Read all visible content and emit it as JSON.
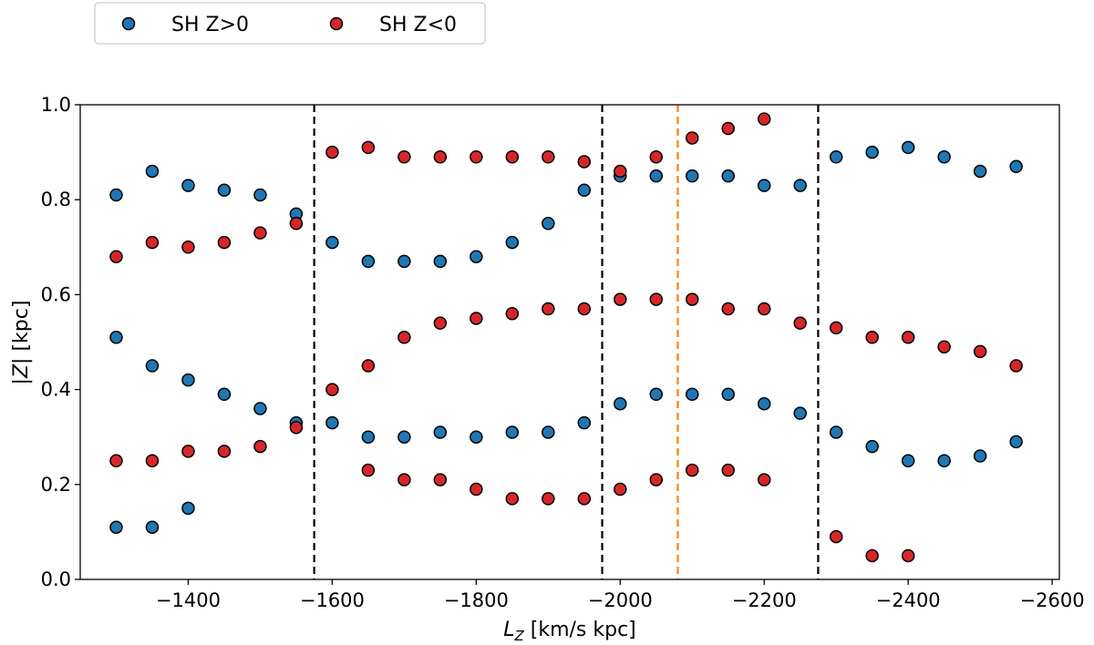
{
  "chart_data": {
    "type": "scatter",
    "title": "",
    "xlabel_main": "L",
    "xlabel_sub": "Z",
    "xlabel_rest": " [km/s kpc]",
    "ylabel_pre": "|",
    "ylabel_var": "Z",
    "ylabel_post": "| [kpc]",
    "xlim": [
      -1250,
      -2610
    ],
    "ylim": [
      0.0,
      1.0
    ],
    "xticks": [
      -1400,
      -1600,
      -1800,
      -2000,
      -2200,
      -2400,
      -2600
    ],
    "xtick_labels": [
      "−1400",
      "−1600",
      "−1800",
      "−2000",
      "−2200",
      "−2400",
      "−2600"
    ],
    "yticks": [
      0.0,
      0.2,
      0.4,
      0.6,
      0.8,
      1.0
    ],
    "ytick_labels": [
      "0.0",
      "0.2",
      "0.4",
      "0.6",
      "0.8",
      "1.0"
    ],
    "vlines": [
      {
        "x": -1575,
        "color": "#000000",
        "style": "dashed"
      },
      {
        "x": -1975,
        "color": "#000000",
        "style": "dashed"
      },
      {
        "x": -2080,
        "color": "#ff7f0e",
        "style": "dashed"
      },
      {
        "x": -2275,
        "color": "#000000",
        "style": "dashed"
      }
    ],
    "legend_position": "top-left-outside",
    "series": [
      {
        "name": "SH Z>0",
        "color": "#1f77b4",
        "points": [
          [
            -1300,
            0.81
          ],
          [
            -1350,
            0.86
          ],
          [
            -1400,
            0.83
          ],
          [
            -1450,
            0.82
          ],
          [
            -1500,
            0.81
          ],
          [
            -1550,
            0.77
          ],
          [
            -1300,
            0.51
          ],
          [
            -1350,
            0.45
          ],
          [
            -1400,
            0.42
          ],
          [
            -1450,
            0.39
          ],
          [
            -1500,
            0.36
          ],
          [
            -1550,
            0.33
          ],
          [
            -1300,
            0.11
          ],
          [
            -1350,
            0.11
          ],
          [
            -1400,
            0.15
          ],
          [
            -1600,
            0.71
          ],
          [
            -1650,
            0.67
          ],
          [
            -1700,
            0.67
          ],
          [
            -1750,
            0.67
          ],
          [
            -1800,
            0.68
          ],
          [
            -1850,
            0.71
          ],
          [
            -1900,
            0.75
          ],
          [
            -1950,
            0.82
          ],
          [
            -1600,
            0.33
          ],
          [
            -1650,
            0.3
          ],
          [
            -1700,
            0.3
          ],
          [
            -1750,
            0.31
          ],
          [
            -1800,
            0.3
          ],
          [
            -1850,
            0.31
          ],
          [
            -1900,
            0.31
          ],
          [
            -1950,
            0.33
          ],
          [
            -2000,
            0.85
          ],
          [
            -2050,
            0.85
          ],
          [
            -2100,
            0.85
          ],
          [
            -2150,
            0.85
          ],
          [
            -2200,
            0.83
          ],
          [
            -2250,
            0.83
          ],
          [
            -2000,
            0.37
          ],
          [
            -2050,
            0.39
          ],
          [
            -2100,
            0.39
          ],
          [
            -2150,
            0.39
          ],
          [
            -2200,
            0.37
          ],
          [
            -2250,
            0.35
          ],
          [
            -2300,
            0.89
          ],
          [
            -2350,
            0.9
          ],
          [
            -2400,
            0.91
          ],
          [
            -2450,
            0.89
          ],
          [
            -2500,
            0.86
          ],
          [
            -2550,
            0.87
          ],
          [
            -2300,
            0.31
          ],
          [
            -2350,
            0.28
          ],
          [
            -2400,
            0.25
          ],
          [
            -2450,
            0.25
          ],
          [
            -2500,
            0.26
          ],
          [
            -2550,
            0.29
          ]
        ]
      },
      {
        "name": "SH Z<0",
        "color": "#d62728",
        "points": [
          [
            -1300,
            0.68
          ],
          [
            -1350,
            0.71
          ],
          [
            -1400,
            0.7
          ],
          [
            -1450,
            0.71
          ],
          [
            -1500,
            0.73
          ],
          [
            -1550,
            0.75
          ],
          [
            -1300,
            0.25
          ],
          [
            -1350,
            0.25
          ],
          [
            -1400,
            0.27
          ],
          [
            -1450,
            0.27
          ],
          [
            -1500,
            0.28
          ],
          [
            -1550,
            0.32
          ],
          [
            -1600,
            0.9
          ],
          [
            -1650,
            0.91
          ],
          [
            -1700,
            0.89
          ],
          [
            -1750,
            0.89
          ],
          [
            -1800,
            0.89
          ],
          [
            -1850,
            0.89
          ],
          [
            -1900,
            0.89
          ],
          [
            -1950,
            0.88
          ],
          [
            -1600,
            0.4
          ],
          [
            -1650,
            0.45
          ],
          [
            -1700,
            0.51
          ],
          [
            -1750,
            0.54
          ],
          [
            -1800,
            0.55
          ],
          [
            -1850,
            0.56
          ],
          [
            -1900,
            0.57
          ],
          [
            -1950,
            0.57
          ],
          [
            -1650,
            0.23
          ],
          [
            -1700,
            0.21
          ],
          [
            -1750,
            0.21
          ],
          [
            -1800,
            0.19
          ],
          [
            -1850,
            0.17
          ],
          [
            -1900,
            0.17
          ],
          [
            -1950,
            0.17
          ],
          [
            -2000,
            0.86
          ],
          [
            -2050,
            0.89
          ],
          [
            -2100,
            0.93
          ],
          [
            -2150,
            0.95
          ],
          [
            -2200,
            0.97
          ],
          [
            -2000,
            0.59
          ],
          [
            -2050,
            0.59
          ],
          [
            -2100,
            0.59
          ],
          [
            -2150,
            0.57
          ],
          [
            -2200,
            0.57
          ],
          [
            -2250,
            0.54
          ],
          [
            -2000,
            0.19
          ],
          [
            -2050,
            0.21
          ],
          [
            -2100,
            0.23
          ],
          [
            -2150,
            0.23
          ],
          [
            -2200,
            0.21
          ],
          [
            -2300,
            0.53
          ],
          [
            -2350,
            0.51
          ],
          [
            -2400,
            0.51
          ],
          [
            -2450,
            0.49
          ],
          [
            -2500,
            0.48
          ],
          [
            -2550,
            0.45
          ],
          [
            -2300,
            0.09
          ],
          [
            -2350,
            0.05
          ],
          [
            -2400,
            0.05
          ]
        ]
      }
    ]
  }
}
